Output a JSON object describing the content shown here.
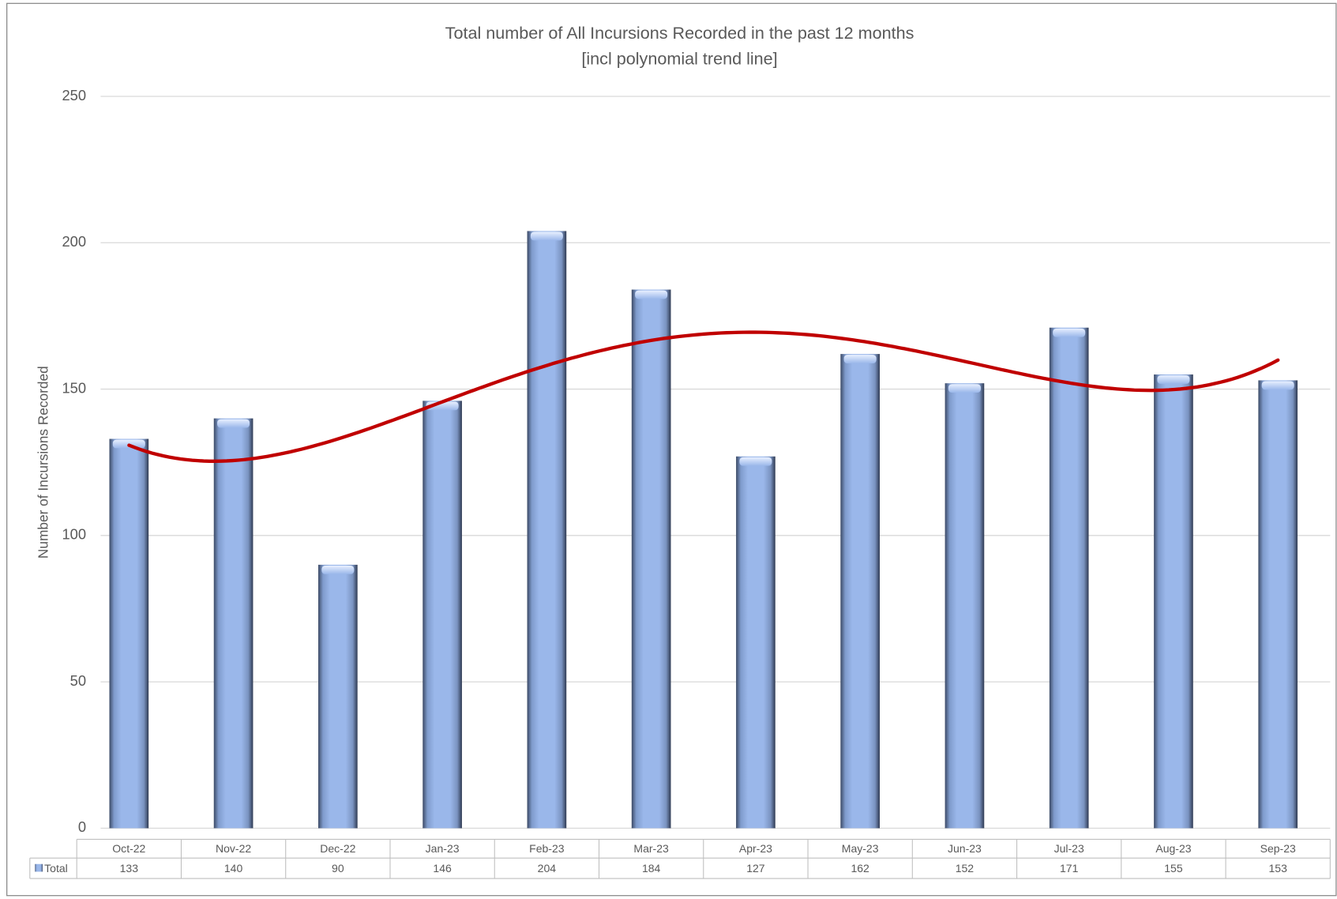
{
  "chart_data": {
    "type": "bar",
    "title": "Total number of All Incursions Recorded in the past 12 months",
    "subtitle": "[incl polynomial trend line]",
    "y_label": "Number of Incursions Recorded",
    "categories": [
      "Oct-22",
      "Nov-22",
      "Dec-22",
      "Jan-23",
      "Feb-23",
      "Mar-23",
      "Apr-23",
      "May-23",
      "Jun-23",
      "Jul-23",
      "Aug-23",
      "Sep-23"
    ],
    "series": [
      {
        "name": "Total",
        "color": "#9ab7ea",
        "values": [
          133,
          140,
          90,
          146,
          204,
          184,
          127,
          162,
          152,
          171,
          155,
          153
        ]
      }
    ],
    "ylim": [
      0,
      250
    ],
    "yticks": [
      0,
      50,
      100,
      150,
      200,
      250
    ],
    "grid": true,
    "trendline": {
      "type": "polynomial",
      "order": 4,
      "color": "#c00000"
    }
  }
}
